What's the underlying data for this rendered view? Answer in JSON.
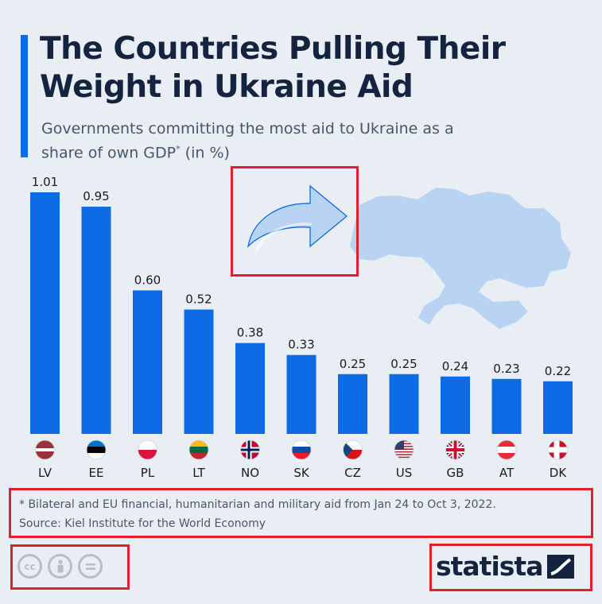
{
  "header": {
    "title": "The Countries Pulling Their Weight in Ukraine Aid",
    "subtitle": "Governments committing the most aid to Ukraine as a share of own GDP",
    "subtitle_mark": "*",
    "subtitle_unit": "(in %)"
  },
  "chart_data": {
    "type": "bar",
    "categories": [
      "LV",
      "EE",
      "PL",
      "LT",
      "NO",
      "SK",
      "CZ",
      "US",
      "GB",
      "AT",
      "DK"
    ],
    "values": [
      1.01,
      0.95,
      0.6,
      0.52,
      0.38,
      0.33,
      0.25,
      0.25,
      0.24,
      0.23,
      0.22
    ],
    "value_labels": [
      "1.01",
      "0.95",
      "0.60",
      "0.52",
      "0.38",
      "0.33",
      "0.25",
      "0.25",
      "0.24",
      "0.23",
      "0.22"
    ],
    "ylim": [
      0,
      1.01
    ],
    "grid": false,
    "bar_color": "#0d6be6"
  },
  "footnote": {
    "line1": "* Bilateral and EU financial, humanitarian and military aid from Jan 24 to Oct 3, 2022.",
    "line2": "Source: Kiel Institute for the World Economy"
  },
  "license_icons": [
    "cc-icon",
    "attribution-icon",
    "no-derivatives-icon"
  ],
  "brand": {
    "name": "statista"
  },
  "colors": {
    "accent": "#0d6be6",
    "title": "#14233f",
    "background": "#e9eef4",
    "map": "#b9d3f3",
    "highlight_box": "#e0202e"
  }
}
